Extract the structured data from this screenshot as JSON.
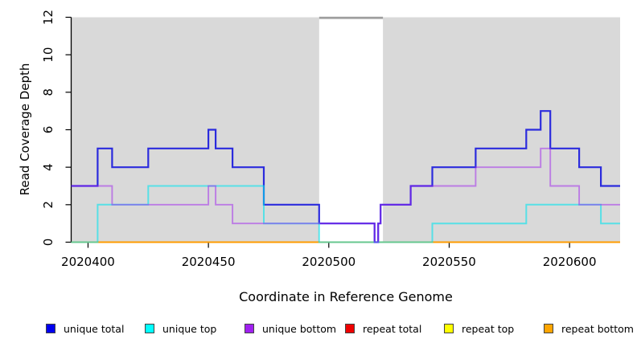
{
  "chart_data": {
    "type": "line",
    "step": true,
    "title": "",
    "xlabel": "Coordinate in Reference Genome",
    "ylabel": "Read Coverage Depth",
    "xlim": [
      2020393,
      2020621
    ],
    "ylim": [
      0,
      12
    ],
    "x_ticks": [
      2020400,
      2020450,
      2020500,
      2020550,
      2020600
    ],
    "y_ticks": [
      0,
      2,
      4,
      6,
      8,
      10,
      12
    ],
    "grid": false,
    "plot_bg_color": "#D9D9D9",
    "axis_color": "#000000",
    "masked_region": {
      "x_start": 2020496,
      "x_end": 2020522.5,
      "fill": "#FFFFFF",
      "top_bar_color": "#9E9E9E"
    },
    "series": [
      {
        "name": "repeat total",
        "color": "#EE0000",
        "opacity": 1,
        "points": [
          [
            2020393,
            0
          ]
        ]
      },
      {
        "name": "repeat top",
        "color": "#FFFF00",
        "opacity": 1,
        "points": [
          [
            2020393,
            0
          ]
        ]
      },
      {
        "name": "repeat bottom",
        "color": "#FF9C00",
        "opacity": 1,
        "points": [
          [
            2020393,
            0
          ]
        ]
      },
      {
        "name": "unique total",
        "color": "#2222DD",
        "opacity": 0.95,
        "points": [
          [
            2020393,
            3
          ],
          [
            2020404,
            5
          ],
          [
            2020410,
            4
          ],
          [
            2020425,
            5
          ],
          [
            2020450,
            6
          ],
          [
            2020453,
            5
          ],
          [
            2020460,
            4
          ],
          [
            2020473,
            2
          ],
          [
            2020496,
            1
          ],
          [
            2020519,
            0
          ],
          [
            2020520.5,
            1
          ],
          [
            2020521.5,
            2
          ],
          [
            2020534,
            3
          ],
          [
            2020543,
            4
          ],
          [
            2020561,
            5
          ],
          [
            2020582,
            6
          ],
          [
            2020588,
            7
          ],
          [
            2020592,
            5
          ],
          [
            2020604,
            4
          ],
          [
            2020613,
            3
          ]
        ]
      },
      {
        "name": "unique top",
        "color": "#00E5EE",
        "opacity": 0.6,
        "points": [
          [
            2020393,
            0
          ],
          [
            2020404,
            2
          ],
          [
            2020425,
            3
          ],
          [
            2020473,
            1
          ],
          [
            2020496,
            0
          ],
          [
            2020543,
            1
          ],
          [
            2020582,
            2
          ],
          [
            2020613,
            1
          ]
        ]
      },
      {
        "name": "unique bottom",
        "color": "#A020F0",
        "opacity": 0.5,
        "points": [
          [
            2020393,
            3
          ],
          [
            2020410,
            2
          ],
          [
            2020450,
            3
          ],
          [
            2020453,
            2
          ],
          [
            2020460,
            1
          ],
          [
            2020519,
            0
          ],
          [
            2020520.5,
            1
          ],
          [
            2020521.5,
            2
          ],
          [
            2020534,
            3
          ],
          [
            2020561,
            4
          ],
          [
            2020588,
            5
          ],
          [
            2020592,
            3
          ],
          [
            2020604,
            2
          ]
        ]
      }
    ],
    "legend": [
      {
        "label": "unique total",
        "color": "#0000EE"
      },
      {
        "label": "unique top",
        "color": "#00FFFF"
      },
      {
        "label": "unique bottom",
        "color": "#A020F0"
      },
      {
        "label": "repeat total",
        "color": "#EE0000"
      },
      {
        "label": "repeat top",
        "color": "#FFFF00"
      },
      {
        "label": "repeat bottom",
        "color": "#FFA500"
      }
    ],
    "legend_position": "bottom"
  }
}
